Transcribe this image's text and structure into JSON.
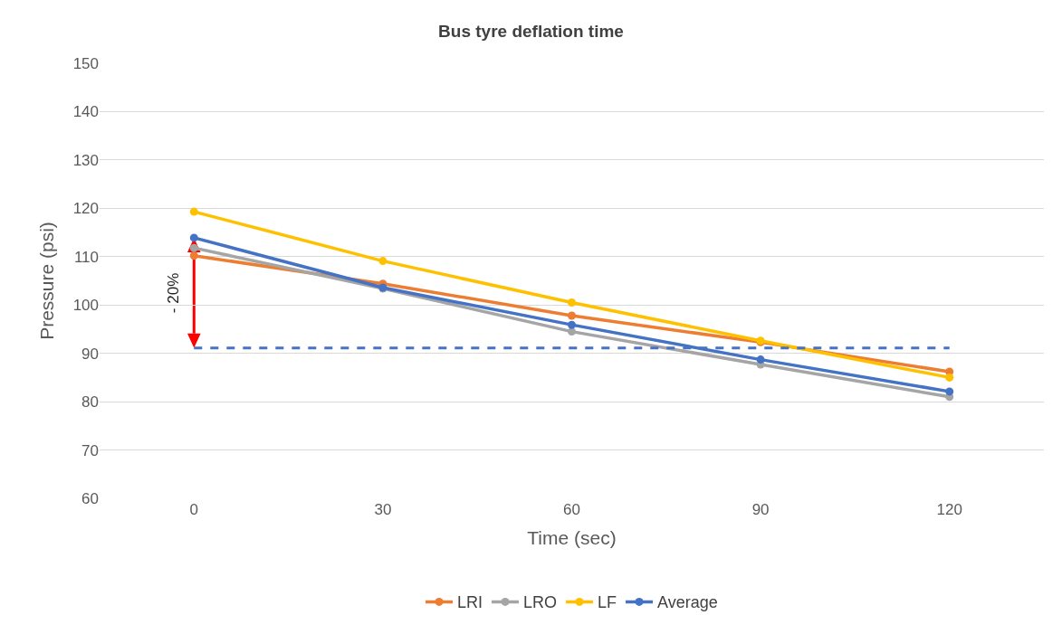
{
  "chart_data": {
    "type": "line",
    "title": "Bus tyre deflation time",
    "xlabel": "Time (sec)",
    "ylabel": "Pressure (psi)",
    "categories": [
      "0",
      "30",
      "60",
      "90",
      "120"
    ],
    "series": [
      {
        "name": "LRI",
        "color": "#ed7d31",
        "values": [
          110.2,
          104.4,
          97.8,
          92.3,
          86.2
        ]
      },
      {
        "name": "LRO",
        "color": "#a5a5a5",
        "values": [
          111.8,
          103.4,
          94.5,
          87.7,
          81.0
        ]
      },
      {
        "name": "LF",
        "color": "#ffc000",
        "values": [
          119.3,
          109.1,
          100.5,
          92.6,
          85.0
        ]
      },
      {
        "name": "Average",
        "color": "#4472c4",
        "values": [
          113.9,
          103.6,
          95.9,
          88.7,
          82.1
        ]
      }
    ],
    "ylim": [
      60,
      150
    ],
    "yticks": [
      60,
      70,
      80,
      90,
      100,
      110,
      120,
      130,
      140,
      150
    ],
    "ref_lines": [
      {
        "axis": "y",
        "value": 91.1,
        "color": "#4472c4",
        "line_style": "dashed"
      }
    ],
    "annotations": [
      "- 20%"
    ],
    "grid": "y",
    "legend": "bottom",
    "marker": "circle",
    "line_style": "solid"
  }
}
